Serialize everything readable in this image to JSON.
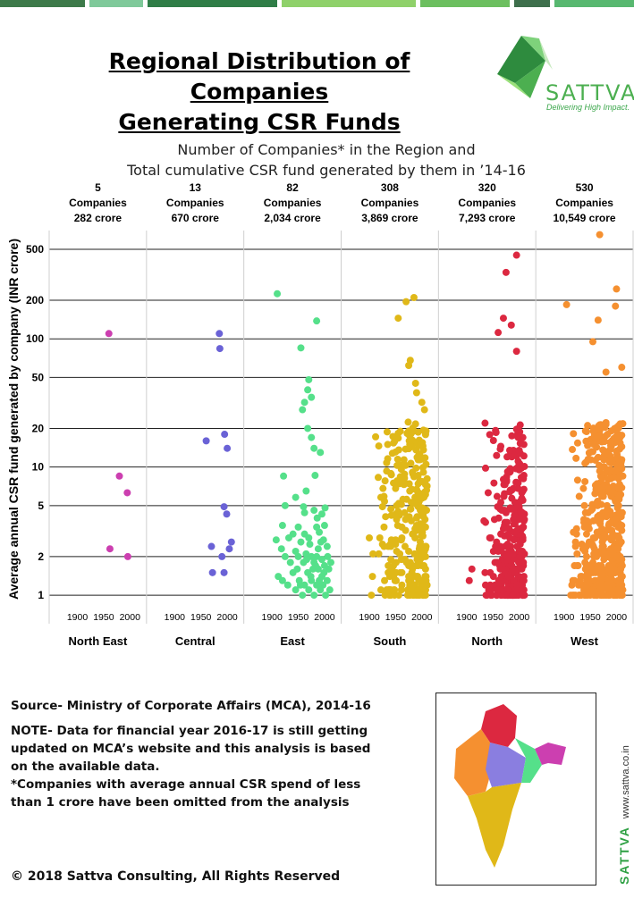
{
  "header": {
    "title_line1": "Regional Distribution of Companies",
    "title_line2": "Generating CSR Funds"
  },
  "brand": {
    "name": "SATTVA",
    "tagline": "Delivering High Impact.",
    "website": "www.sattva.co.in",
    "color": "#4caf50"
  },
  "chart_data": {
    "type": "scatter",
    "title_line1": "Number of Companies* in the Region and",
    "title_line2": "Total cumulative CSR fund generated by them in ’14-16",
    "ylabel": "Average annual CSR fund generated by company (INR crore)",
    "yscale": "log",
    "ylim": [
      0.8,
      700
    ],
    "yticks": [
      1,
      2,
      5,
      10,
      20,
      50,
      100,
      200,
      500
    ],
    "xlim": [
      1860,
      2018
    ],
    "xticks": [
      1900,
      1950,
      2000
    ],
    "grid": "horizontal",
    "panels": [
      {
        "region": "North East",
        "companies_count": "5",
        "companies_label": "Companies",
        "fund": "282 crore",
        "color": "#cc3fb0",
        "points": [
          [
            1960,
            110
          ],
          [
            1980,
            8.5
          ],
          [
            1995,
            6.3
          ],
          [
            1962,
            2.3
          ],
          [
            1996,
            2.0
          ]
        ]
      },
      {
        "region": "Central",
        "companies_count": "13",
        "companies_label": "Companies",
        "fund": "670 crore",
        "color": "#6a62d6",
        "points": [
          [
            1985,
            110
          ],
          [
            1986,
            84
          ],
          [
            1960,
            16
          ],
          [
            1995,
            18
          ],
          [
            2000,
            14
          ],
          [
            1994,
            4.9
          ],
          [
            1999,
            4.3
          ],
          [
            1970,
            2.4
          ],
          [
            1990,
            2.0
          ],
          [
            2008,
            2.6
          ],
          [
            2004,
            2.3
          ],
          [
            1972,
            1.5
          ],
          [
            1994,
            1.5
          ]
        ]
      },
      {
        "region": "East",
        "companies_count": "82",
        "companies_label": "Companies",
        "fund": "2,034 crore",
        "color": "#55e08a",
        "points": [
          [
            1910,
            225
          ],
          [
            1985,
            138
          ],
          [
            1955,
            85
          ],
          [
            1970,
            48
          ],
          [
            1968,
            40
          ],
          [
            1975,
            35
          ],
          [
            1962,
            32
          ],
          [
            1958,
            28
          ],
          [
            1968,
            20
          ],
          [
            1975,
            17
          ],
          [
            1992,
            13
          ],
          [
            1980,
            14
          ],
          [
            1922,
            8.5
          ],
          [
            1982,
            8.6
          ],
          [
            1965,
            6.5
          ],
          [
            1945,
            5.8
          ],
          [
            1925,
            5.0
          ],
          [
            1960,
            4.9
          ],
          [
            1980,
            4.6
          ],
          [
            1995,
            4.3
          ],
          [
            1920,
            3.5
          ],
          [
            1950,
            3.4
          ],
          [
            1985,
            3.4
          ],
          [
            2000,
            3.5
          ],
          [
            1940,
            3.0
          ],
          [
            1962,
            3.0
          ],
          [
            1990,
            3.1
          ],
          [
            1908,
            2.7
          ],
          [
            1932,
            2.8
          ],
          [
            1955,
            2.6
          ],
          [
            1972,
            2.5
          ],
          [
            1998,
            2.7
          ],
          [
            1918,
            2.3
          ],
          [
            1945,
            2.2
          ],
          [
            1965,
            2.1
          ],
          [
            1985,
            2.0
          ],
          [
            2005,
            2.4
          ],
          [
            1925,
            2.0
          ],
          [
            1950,
            2.0
          ],
          [
            1975,
            2.0
          ],
          [
            1995,
            1.9
          ],
          [
            1935,
            1.8
          ],
          [
            1960,
            1.8
          ],
          [
            1980,
            1.8
          ],
          [
            2000,
            1.7
          ],
          [
            1912,
            1.4
          ],
          [
            1940,
            1.5
          ],
          [
            1968,
            1.5
          ],
          [
            1988,
            1.6
          ],
          [
            2008,
            1.6
          ],
          [
            1920,
            1.3
          ],
          [
            1952,
            1.3
          ],
          [
            1975,
            1.3
          ],
          [
            1995,
            1.4
          ],
          [
            1930,
            1.2
          ],
          [
            1962,
            1.2
          ],
          [
            1985,
            1.2
          ],
          [
            2005,
            1.3
          ],
          [
            1945,
            1.1
          ],
          [
            1970,
            1.1
          ],
          [
            1992,
            1.1
          ],
          [
            2010,
            1.1
          ],
          [
            1980,
            1.0
          ],
          [
            2002,
            1.0
          ],
          [
            1958,
            1.0
          ],
          [
            1978,
            1.6
          ],
          [
            1999,
            1.5
          ],
          [
            1988,
            2.3
          ],
          [
            1948,
            1.6
          ],
          [
            2012,
            1.8
          ],
          [
            1993,
            2.6
          ],
          [
            1966,
            1.9
          ],
          [
            1983,
            1.7
          ],
          [
            1997,
            1.2
          ],
          [
            1974,
            1.4
          ],
          [
            1954,
            1.2
          ],
          [
            2006,
            2.0
          ],
          [
            1990,
            1.3
          ],
          [
            1970,
            2.8
          ],
          [
            1986,
            4.0
          ],
          [
            2001,
            4.8
          ],
          [
            1962,
            4.4
          ]
        ]
      },
      {
        "region": "South",
        "companies_count": "308",
        "companies_label": "Companies",
        "fund": "3,869 crore",
        "color": "#e0b818",
        "seed": 3,
        "n": 308,
        "flat": [
          [
            1970,
            195
          ],
          [
            1985,
            210
          ],
          [
            1955,
            145
          ],
          [
            1978,
            68
          ],
          [
            1975,
            62
          ],
          [
            1988,
            45
          ],
          [
            1990,
            38
          ],
          [
            2005,
            28
          ],
          [
            2000,
            32
          ],
          [
            1930,
            7.8
          ],
          [
            1900,
            2.8
          ]
        ],
        "xmin": 1900,
        "xmax": 2010,
        "bias": 1.4
      },
      {
        "region": "North",
        "companies_count": "320",
        "companies_label": "Companies",
        "fund": "7,293 crore",
        "color": "#dc2840",
        "seed": 7,
        "n": 320,
        "flat": [
          [
            1995,
            450
          ],
          [
            1975,
            330
          ],
          [
            1970,
            145
          ],
          [
            1985,
            128
          ],
          [
            1995,
            80
          ],
          [
            1960,
            112
          ],
          [
            1935,
            22
          ],
          [
            1905,
            1.3
          ],
          [
            1910,
            1.6
          ]
        ],
        "xmin": 1930,
        "xmax": 2010,
        "bias": 1.8
      },
      {
        "region": "West",
        "companies_count": "530",
        "companies_label": "Companies",
        "fund": "10,549 crore",
        "color": "#f59030",
        "seed": 11,
        "n": 530,
        "flat": [
          [
            1968,
            650
          ],
          [
            1905,
            185
          ],
          [
            1965,
            140
          ],
          [
            2000,
            245
          ],
          [
            1998,
            180
          ],
          [
            1955,
            95
          ],
          [
            1980,
            55
          ],
          [
            2010,
            60
          ],
          [
            1915,
            1.2
          ],
          [
            1935,
            1.2
          ],
          [
            1945,
            1.0
          ]
        ],
        "xmin": 1905,
        "xmax": 2012,
        "bias": 1.7
      }
    ],
    "x_tick_labels": [
      "1900",
      "1950",
      "2000"
    ]
  },
  "footer": {
    "source": "Source- Ministry of Corporate Affairs (MCA), 2014-16",
    "note": "NOTE- Data for financial year 2016-17 is still getting updated on MCA’s website and this analysis is based on the available data.",
    "footnote": "*Companies with average annual CSR spend of  less than 1 crore have been omitted from the analysis"
  },
  "copyright": "© 2018 Sattva Consulting, All Rights Reserved"
}
